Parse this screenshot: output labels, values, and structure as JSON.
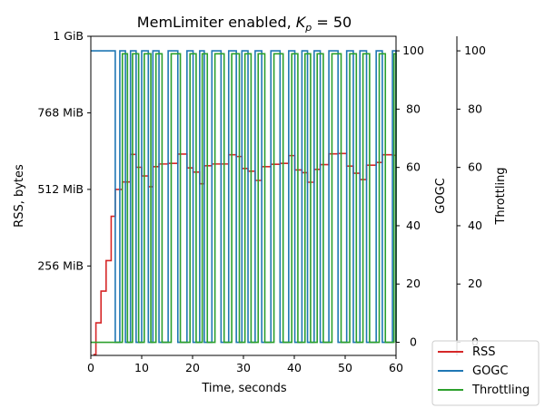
{
  "chart_data": {
    "type": "line",
    "title_prefix": "MemLimiter enabled, ",
    "title_symbol": "K",
    "title_subscript": "p",
    "title_suffix": " = 50",
    "xlabel": "Time, seconds",
    "ylabel_left": "RSS, bytes",
    "ylabel_right": "GOGC",
    "ylabel_right2": "Throttling",
    "xlim": [
      0,
      60
    ],
    "ylim_left_mib": [
      -43,
      1024
    ],
    "ylim_right": [
      -4.5,
      105
    ],
    "x_ticks": [
      0,
      10,
      20,
      30,
      40,
      50,
      60
    ],
    "x_tick_labels": [
      "0",
      "10",
      "20",
      "30",
      "40",
      "50",
      "60"
    ],
    "y_left_ticks_mib": [
      256,
      512,
      768,
      1024
    ],
    "y_left_tick_labels": [
      "256 MiB",
      "512 MiB",
      "768 MiB",
      "1 GiB"
    ],
    "y_right_ticks": [
      0,
      20,
      40,
      60,
      80,
      100
    ],
    "y_right_tick_labels": [
      "0",
      "20",
      "40",
      "60",
      "80",
      "100"
    ],
    "legend": {
      "placement": "lower-right",
      "entries": [
        "RSS",
        "GOGC",
        "Throttling"
      ]
    },
    "grid": false,
    "colors": {
      "RSS": "#d62728",
      "GOGC": "#1f77b4",
      "Throttling": "#2ca02c"
    },
    "series": [
      {
        "name": "RSS",
        "axis": "left",
        "unit": "MiB",
        "x": [
          0.5,
          1.0,
          2.0,
          3.0,
          4.0,
          4.8,
          6.2,
          7.8,
          8.9,
          10.0,
          11.3,
          12.2,
          13.4,
          15.2,
          17.1,
          18.9,
          20.1,
          21.4,
          22.3,
          23.8,
          25.6,
          27.1,
          28.6,
          29.7,
          30.9,
          32.3,
          33.6,
          35.4,
          37.2,
          38.9,
          40.1,
          41.5,
          42.6,
          43.9,
          45.1,
          46.8,
          48.6,
          50.3,
          51.6,
          52.9,
          54.2,
          56.1,
          57.3,
          59.3
        ],
        "y": [
          -40,
          66,
          172,
          274,
          422,
          512,
          537,
          629,
          586,
          557,
          521,
          588,
          597,
          599,
          630,
          584,
          570,
          531,
          591,
          597,
          597,
          628,
          622,
          582,
          573,
          542,
          588,
          596,
          599,
          625,
          577,
          568,
          536,
          579,
          595,
          631,
          632,
          590,
          566,
          545,
          593,
          602,
          628,
          626
        ]
      },
      {
        "name": "GOGC",
        "axis": "right",
        "unit": "",
        "x": [
          0,
          4.8,
          5.7,
          6.8,
          7.8,
          8.9,
          10.0,
          11.3,
          12.2,
          13.4,
          15.2,
          17.1,
          18.9,
          20.1,
          21.4,
          22.3,
          23.8,
          25.6,
          27.1,
          28.6,
          29.7,
          30.9,
          32.3,
          33.6,
          35.4,
          37.2,
          38.9,
          40.1,
          41.5,
          42.6,
          43.9,
          45.1,
          46.8,
          48.6,
          50.3,
          51.6,
          52.9,
          54.2,
          56.1,
          57.3,
          59.3,
          60.0
        ],
        "y": [
          100,
          0,
          100,
          0,
          100,
          0,
          100,
          0,
          100,
          0,
          100,
          0,
          100,
          0,
          100,
          0,
          100,
          0,
          100,
          0,
          100,
          0,
          100,
          0,
          100,
          0,
          100,
          0,
          100,
          0,
          100,
          0,
          100,
          0,
          100,
          0,
          100,
          0,
          100,
          0,
          100,
          0
        ]
      },
      {
        "name": "Throttling",
        "axis": "right",
        "unit": "",
        "x": [
          0,
          6.2,
          7.2,
          8.2,
          9.4,
          10.5,
          11.8,
          12.8,
          14.0,
          15.8,
          17.6,
          19.5,
          20.7,
          21.9,
          22.9,
          24.4,
          26.2,
          27.7,
          29.2,
          30.3,
          31.5,
          32.9,
          34.2,
          36.0,
          37.8,
          39.5,
          40.7,
          42.1,
          43.2,
          44.5,
          45.7,
          47.4,
          49.2,
          50.9,
          52.2,
          53.5,
          54.8,
          56.7,
          57.9,
          59.6,
          60.0
        ],
        "y": [
          0,
          99,
          0,
          99,
          0,
          99,
          0,
          99,
          0,
          99,
          0,
          99,
          0,
          99,
          0,
          99,
          0,
          99,
          0,
          99,
          0,
          99,
          0,
          99,
          0,
          99,
          0,
          99,
          0,
          99,
          0,
          99,
          0,
          99,
          0,
          99,
          0,
          99,
          0,
          99,
          0
        ]
      }
    ]
  }
}
